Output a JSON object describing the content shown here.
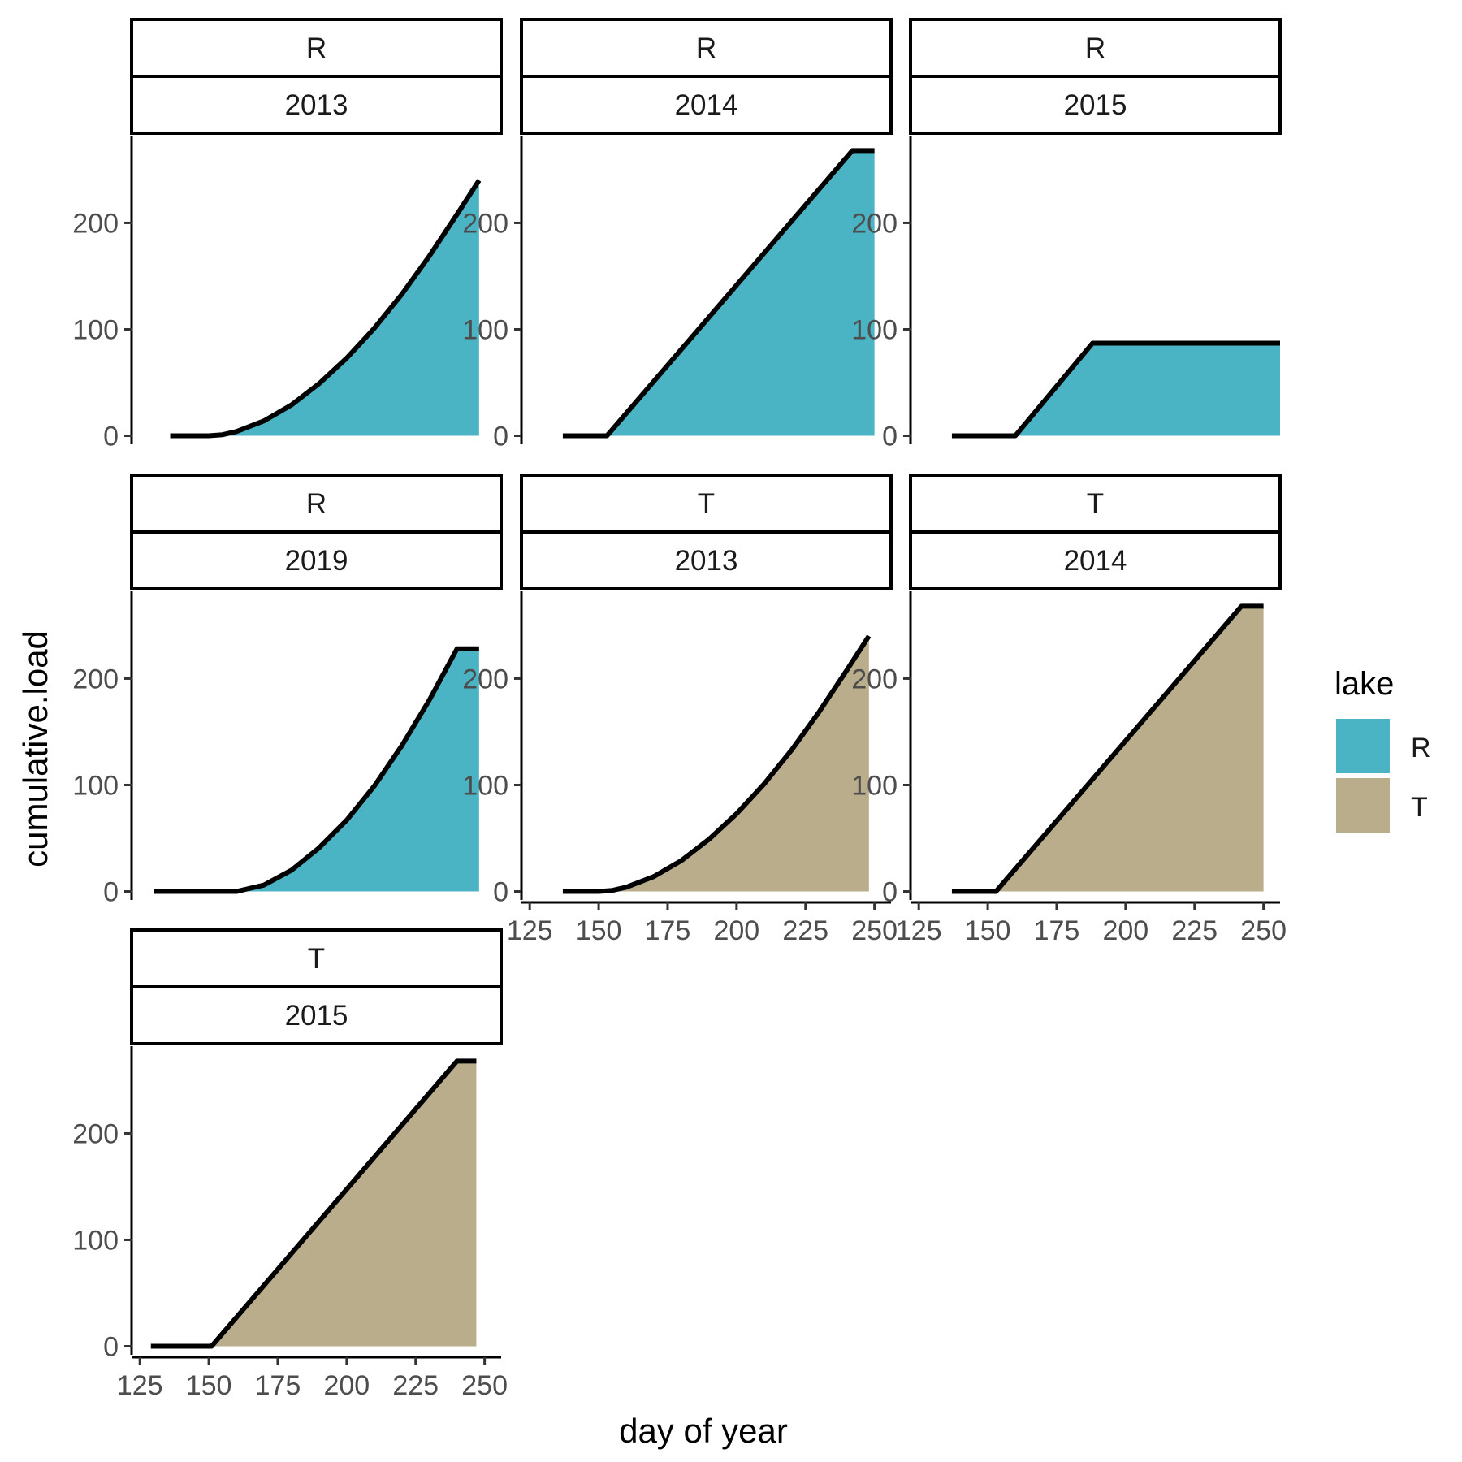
{
  "chart_data": {
    "type": "area",
    "xlabel": "day of year",
    "ylabel": "cumulative.load",
    "xlim": [
      122,
      256
    ],
    "ylim": [
      -8,
      282
    ],
    "x_ticks": [
      125,
      150,
      175,
      200,
      225,
      250
    ],
    "y_ticks": [
      0,
      100,
      200
    ],
    "legend": {
      "title": "lake",
      "position": "right",
      "entries": [
        {
          "label": "R",
          "color": "#4ab4c4"
        },
        {
          "label": "T",
          "color": "#baad8b"
        }
      ]
    },
    "line_color": "#000000",
    "panels": [
      {
        "lake": "R",
        "year": "2013",
        "x": [
          136,
          150,
          155,
          160,
          170,
          180,
          190,
          200,
          210,
          220,
          230,
          240,
          248
        ],
        "y": [
          0,
          0,
          1,
          4,
          14,
          29,
          49,
          73,
          101,
          133,
          169,
          208,
          240
        ]
      },
      {
        "lake": "R",
        "year": "2014",
        "x": [
          137,
          153,
          242,
          250
        ],
        "y": [
          0,
          0,
          268,
          268
        ]
      },
      {
        "lake": "R",
        "year": "2015",
        "x": [
          137,
          160,
          188,
          256
        ],
        "y": [
          0,
          0,
          87,
          87
        ]
      },
      {
        "lake": "R",
        "year": "2019",
        "x": [
          130,
          160,
          170,
          180,
          190,
          200,
          210,
          220,
          230,
          240,
          248
        ],
        "y": [
          0,
          0,
          6,
          20,
          41,
          67,
          99,
          137,
          180,
          228,
          228
        ]
      },
      {
        "lake": "T",
        "year": "2013",
        "x": [
          137,
          150,
          155,
          160,
          170,
          180,
          190,
          200,
          210,
          220,
          230,
          240,
          248
        ],
        "y": [
          0,
          0,
          1,
          4,
          14,
          29,
          49,
          73,
          101,
          133,
          169,
          208,
          240
        ]
      },
      {
        "lake": "T",
        "year": "2014",
        "x": [
          137,
          153,
          242,
          250
        ],
        "y": [
          0,
          0,
          268,
          268
        ]
      },
      {
        "lake": "T",
        "year": "2015",
        "x": [
          129,
          151,
          240,
          247
        ],
        "y": [
          0,
          0,
          268,
          268
        ]
      }
    ]
  }
}
